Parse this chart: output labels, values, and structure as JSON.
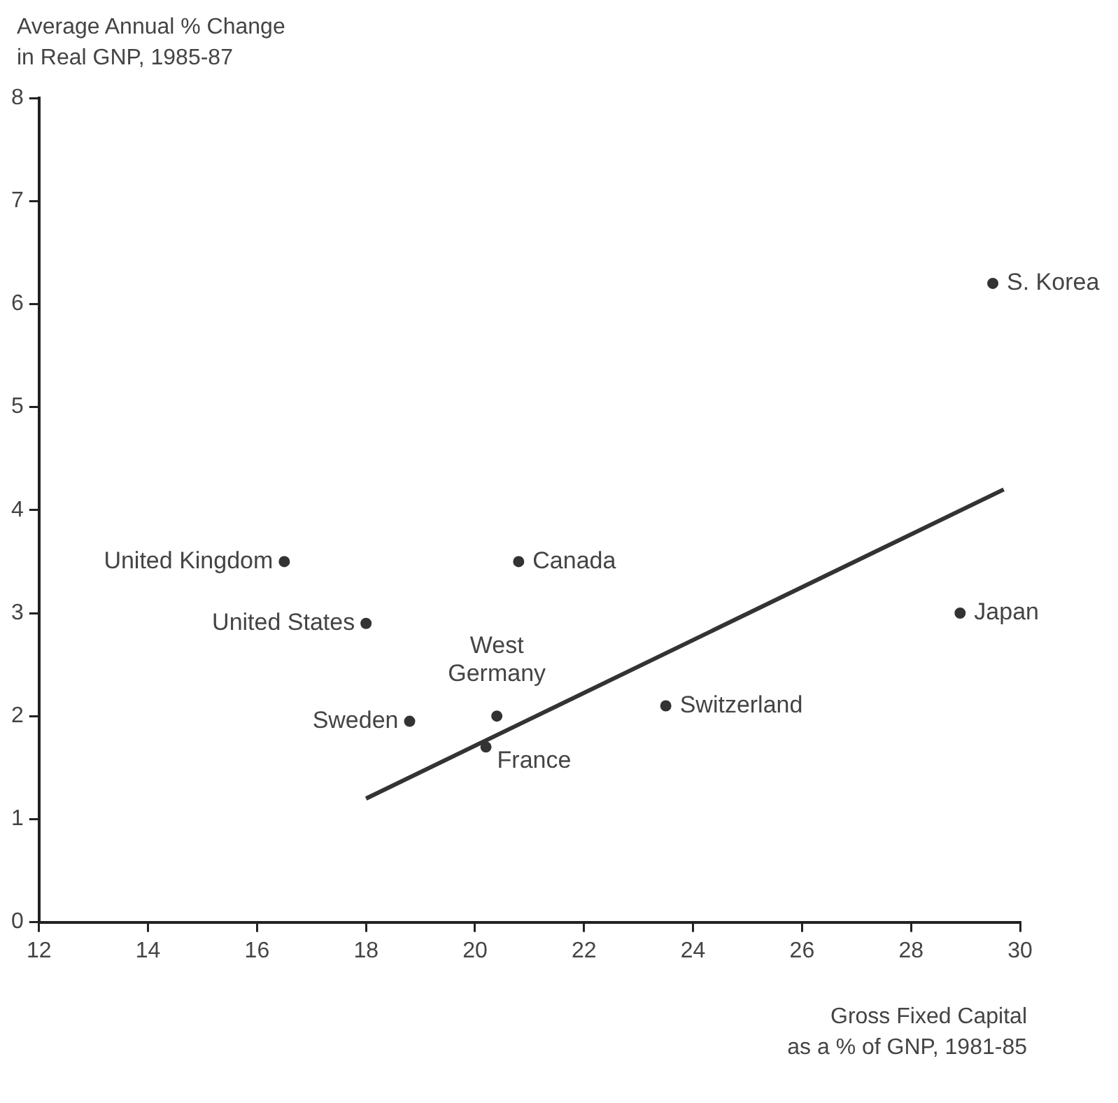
{
  "chart_data": {
    "type": "scatter",
    "xlabel": "Gross Fixed Capital\nas a % of GNP, 1981-85",
    "ylabel": "Average Annual % Change\nin Real GNP, 1985-87",
    "x": [
      29.5,
      16.5,
      20.8,
      18.0,
      28.9,
      23.5,
      20.4,
      18.8,
      20.2
    ],
    "series": [
      {
        "color": "#333333",
        "marker": "circle",
        "values": [
          6.2,
          3.5,
          3.5,
          2.9,
          3.0,
          2.1,
          2.0,
          1.95,
          1.7
        ]
      },
      {
        "type": "line",
        "color": "#333333",
        "marker": "none",
        "line_style": "solid",
        "x": [
          18,
          29.7
        ],
        "values": [
          1.2,
          4.2
        ]
      }
    ],
    "xlim": [
      12,
      30
    ],
    "xticks": [
      12,
      14,
      16,
      18,
      20,
      22,
      24,
      26,
      28,
      30
    ],
    "ylim": [
      0,
      8
    ],
    "yticks": [
      0,
      1,
      2,
      3,
      4,
      5,
      6,
      7,
      8
    ],
    "grid": false,
    "legend": false,
    "annotations": [
      {
        "text": "S. Korea",
        "x": 29.5,
        "y": 6.2
      },
      {
        "text": "United Kingdom",
        "x": 16.5,
        "y": 3.5
      },
      {
        "text": "Canada",
        "x": 20.8,
        "y": 3.5
      },
      {
        "text": "United States",
        "x": 18.0,
        "y": 2.9
      },
      {
        "text": "Japan",
        "x": 28.9,
        "y": 3.0
      },
      {
        "text": "Switzerland",
        "x": 23.5,
        "y": 2.1
      },
      {
        "text": "West\nGermany",
        "x": 20.4,
        "y": 2.0
      },
      {
        "text": "Sweden",
        "x": 18.8,
        "y": 1.95
      },
      {
        "text": "France",
        "x": 20.2,
        "y": 1.7
      }
    ]
  }
}
